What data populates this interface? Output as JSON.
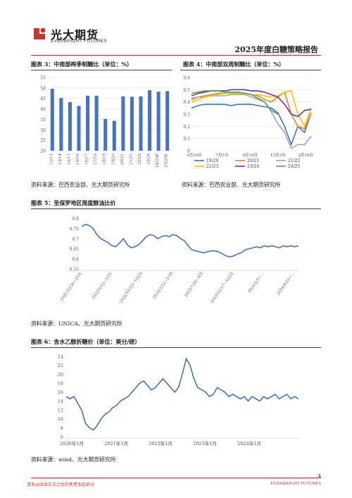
{
  "header": {
    "company_cn": "光大期货",
    "company_en": "EVERBRIGHT FUTURES",
    "report_title": "2025年度白糖策略报告"
  },
  "fig3": {
    "caption": "图表 3：中南部榨季制糖比（单位：%）",
    "chart_data": {
      "type": "bar",
      "categories": [
        "12/13",
        "13/14",
        "14/15",
        "15/16",
        "16/17",
        "17/18",
        "18/19",
        "19/20",
        "20/21",
        "21/22",
        "22/23",
        "23/24",
        "24/25E",
        "25/26E"
      ],
      "values": [
        49.6,
        45.2,
        43.2,
        41.4,
        46.3,
        46.3,
        35.2,
        34.3,
        46.0,
        45.8,
        46.0,
        48.9,
        48.2,
        48.5
      ],
      "ylim": [
        20,
        55
      ],
      "yticks": [
        20,
        25,
        30,
        35,
        40,
        45,
        50,
        55
      ],
      "color": "#4472c4"
    }
  },
  "fig4": {
    "caption": "图表 4：中南部双周制糖比（单位：%）",
    "chart_data": {
      "type": "line",
      "ylim": [
        0,
        0.6
      ],
      "yticks": [
        "0",
        "0.1",
        "0.2",
        "0.3",
        "0.4",
        "0.5",
        "0.6"
      ],
      "xticks": [
        "4月16日",
        "7月1日",
        "9月16日",
        "12月1日",
        "2月16日"
      ],
      "series": [
        {
          "name": "19/20",
          "color": "#4472c4",
          "values": [
            0.35,
            0.37,
            0.38,
            0.38,
            0.38,
            0.38,
            0.37,
            0.38,
            0.38,
            0.38,
            0.37,
            0.36,
            0.35,
            0.31,
            0.2,
            0.05,
            0.2,
            0.15,
            0.31
          ]
        },
        {
          "name": "20/21",
          "color": "#ed7d31",
          "values": [
            0.42,
            0.44,
            0.45,
            0.46,
            0.47,
            0.47,
            0.47,
            0.48,
            0.47,
            0.46,
            0.45,
            0.42,
            0.4,
            0.44,
            0.48,
            0.3,
            0.2,
            0.18,
            0.31
          ]
        },
        {
          "name": "21/22",
          "color": "#a5a5a5",
          "values": [
            0.43,
            0.44,
            0.44,
            0.45,
            0.45,
            0.45,
            0.46,
            0.46,
            0.46,
            0.44,
            0.42,
            0.4,
            0.32,
            0.22,
            0.15,
            0.02,
            0.05,
            0.05,
            0.12
          ]
        },
        {
          "name": "22/23",
          "color": "#ffc000",
          "values": [
            0.4,
            0.42,
            0.44,
            0.45,
            0.46,
            0.47,
            0.47,
            0.47,
            0.47,
            0.46,
            0.46,
            0.45,
            0.44,
            0.45,
            0.48,
            0.49,
            0.3,
            0.2,
            0.35
          ]
        },
        {
          "name": "23/24",
          "color": "#7030a0",
          "values": [
            0.45,
            0.47,
            0.48,
            0.49,
            0.49,
            0.49,
            0.5,
            0.5,
            0.5,
            0.49,
            0.49,
            0.48,
            0.46,
            0.44,
            0.38,
            0.3,
            0.28,
            0.33,
            0.34
          ]
        },
        {
          "name": "24/25",
          "color": "#4ca64c",
          "values": [
            0.47,
            0.48,
            0.49,
            0.49,
            0.49,
            0.48,
            0.48,
            0.48,
            0.47,
            0.46,
            0.43,
            0.4,
            0.33,
            0.3
          ]
        }
      ]
    }
  },
  "source_1": "资料来源：巴西农业部、光大期货研究所",
  "source_2": "资料来源：巴西农业部、光大期货研究所",
  "fig5": {
    "caption": "图表 5：圣保罗地区周度醇油比价",
    "chart_data": {
      "type": "line",
      "ylim": [
        0.55,
        0.8
      ],
      "yticks": [
        "0.55",
        "0.6",
        "0.65",
        "0.7",
        "0.75",
        "0.8"
      ],
      "xticks": [
        "2021/12/26~1/01",
        "2022/5/15~5/21",
        "2022/10/23~10/29",
        "2023/3/12~3/18",
        "2023/7/30~8/5",
        "2023/12/17~12/23",
        "2024/5/5~...",
        "2024/9/22~..."
      ],
      "color": "#3c6bb5",
      "values": [
        0.76,
        0.77,
        0.765,
        0.75,
        0.72,
        0.7,
        0.69,
        0.68,
        0.665,
        0.66,
        0.68,
        0.7,
        0.67,
        0.655,
        0.66,
        0.67,
        0.69,
        0.71,
        0.72,
        0.715,
        0.7,
        0.71,
        0.715,
        0.71,
        0.72,
        0.715,
        0.7,
        0.69,
        0.665,
        0.645,
        0.64,
        0.635,
        0.63,
        0.635,
        0.64,
        0.64,
        0.635,
        0.625,
        0.615,
        0.61,
        0.615,
        0.625,
        0.63,
        0.645,
        0.65,
        0.655,
        0.66,
        0.655,
        0.665,
        0.66,
        0.665,
        0.66,
        0.655,
        0.665,
        0.66,
        0.665,
        0.66,
        0.665
      ]
    }
  },
  "source_3": "资料来源：UNICA、光大期货研究所",
  "fig6": {
    "caption": "图表 6：含水乙醇折糖价（单位：美分/磅）",
    "chart_data": {
      "type": "line",
      "ylim": [
        6,
        24
      ],
      "yticks": [
        "6",
        "8",
        "10",
        "12",
        "14",
        "16",
        "18",
        "20",
        "22",
        "24"
      ],
      "xticks": [
        "2020年1月",
        "2021年1月",
        "2022年1月",
        "2023年1月",
        "2024年1月"
      ],
      "color": "#3c6bb5",
      "values": [
        15,
        14.5,
        15,
        13.5,
        12,
        9,
        8,
        7.5,
        8.5,
        10,
        11,
        11.5,
        12.5,
        13,
        14,
        14.5,
        15,
        16,
        17,
        18,
        18.5,
        17.5,
        16.5,
        17,
        18,
        19,
        18,
        17,
        16,
        17,
        20,
        23.5,
        22,
        19,
        17,
        16.5,
        16,
        15,
        15.5,
        17,
        16.5,
        16,
        15,
        15.5,
        15,
        14.5,
        15,
        14,
        15,
        14.5,
        14,
        15,
        14.5,
        15,
        15.5,
        14.5,
        15,
        15.5,
        14.5,
        15,
        14.5
      ]
    }
  },
  "source_4": "资料来源：wind、光大期货研究所",
  "footer": {
    "disclaimer": "请务必阅读正文之后的免责条款部分",
    "brand": "EVERBRIGHT FUTURES",
    "page_number": "4"
  }
}
